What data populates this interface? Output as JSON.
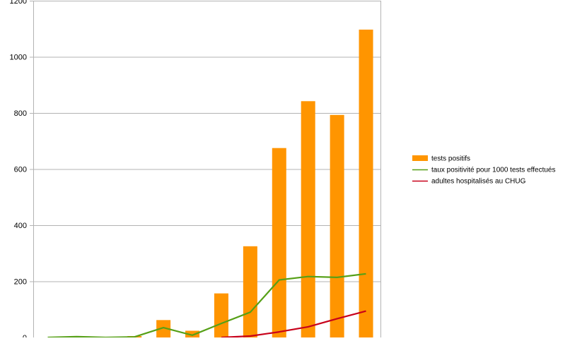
{
  "chart_data": {
    "type": "bar",
    "categories": [
      "",
      "",
      "",
      "",
      "",
      "",
      "",
      "",
      "",
      "",
      "",
      ""
    ],
    "ylim": [
      0,
      1200
    ],
    "yticks": [
      0,
      200,
      400,
      600,
      800,
      1000,
      1200
    ],
    "grid": true,
    "legend_position": "right",
    "series": [
      {
        "name": "tests positifs",
        "kind": "bar",
        "color": "#ff9500",
        "values": [
          0,
          1,
          0,
          5,
          62,
          24,
          157,
          325,
          675,
          842,
          793,
          1097
        ]
      },
      {
        "name": "taux positivité pour 1000 tests effectués",
        "kind": "line",
        "color": "#56a017",
        "values": [
          0,
          3,
          0,
          2,
          35,
          8,
          50,
          90,
          205,
          217,
          214,
          227
        ]
      },
      {
        "name": "adultes hospitalisés au CHUG",
        "kind": "line",
        "color": "#c8001a",
        "values": [
          null,
          null,
          null,
          null,
          null,
          null,
          0,
          5,
          20,
          38,
          67,
          94
        ]
      }
    ]
  }
}
